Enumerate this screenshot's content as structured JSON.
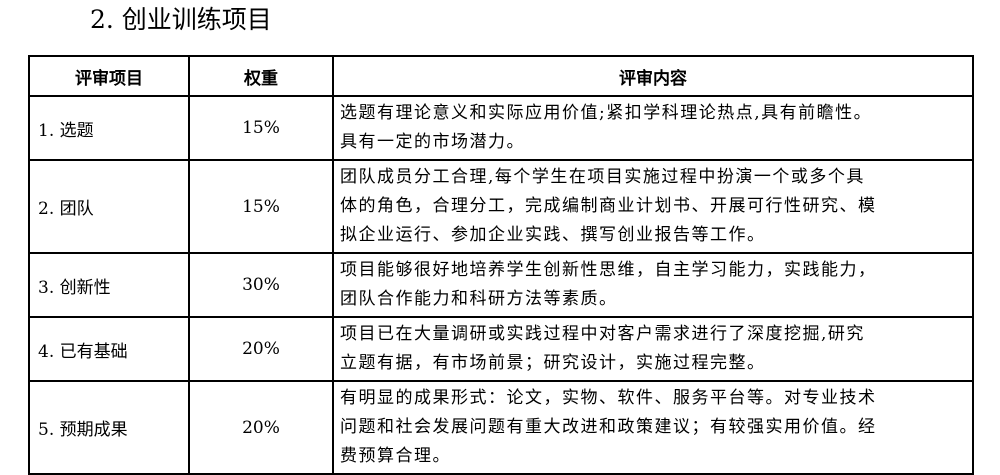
{
  "title": "2. 创业训练项目",
  "headers": [
    "评审项目",
    "权重",
    "评审内容"
  ],
  "rows": [
    {
      "item": "1. 选题",
      "weight": "15%",
      "lines": [
        "选题有理论意义和实际应用价值;紧扣学科理论热点,具有前瞻性。",
        "具有一定的市场潜力。"
      ]
    },
    {
      "item": "2.  团队",
      "weight": "15%",
      "lines": [
        "团队成员分工合理,每个学生在项目实施过程中扮演一个或多个具",
        "体的角色，合理分工，完成编制商业计划书、开展可行性研究、模",
        "拟企业运行、参加企业实践、撰写创业报告等工作。"
      ]
    },
    {
      "item": "3. 创新性",
      "weight": "30%",
      "lines": [
        "项目能够很好地培养学生创新性思维，自主学习能力，实践能力，",
        "团队合作能力和科研方法等素质。"
      ]
    },
    {
      "item": "4. 已有基础",
      "weight": "20%",
      "lines": [
        "项目已在大量调研或实践过程中对客户需求进行了深度挖掘,研究",
        "立题有据，有市场前景；研究设计，实施过程完整。"
      ]
    },
    {
      "item": "5. 预期成果",
      "weight": "20%",
      "lines": [
        "有明显的成果形式：论文，实物、软件、服务平台等。对专业技术",
        "问题和社会发展问题有重大改进和政策建议；有较强实用价值。经",
        "费预算合理。"
      ]
    }
  ]
}
